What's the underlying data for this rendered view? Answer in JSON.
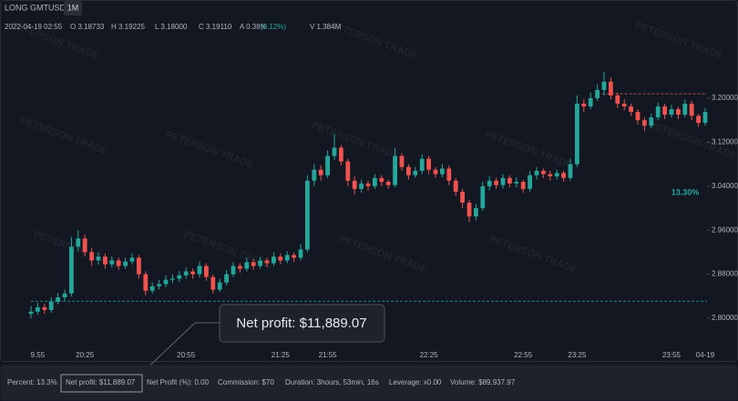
{
  "header": {
    "symbol": "LONG GMTUSDT",
    "interval": "1M",
    "date": "2022-04-19 02:55",
    "open": "O 3.18733",
    "high": "H 3.19225",
    "low": "L 3.18000",
    "close": "C 3.19110",
    "amplitude": "A 0.38%",
    "change": "(0.12%)",
    "volume": "V 1.384M"
  },
  "watermark": "PETERSON TRADE",
  "tooltip": "Net profit: $11,889.07",
  "footer": [
    "Percent: 13.3%",
    "Net profit: $11,889.07",
    "Net Profit (%): 0.00",
    "Commission: $70",
    "Duration: 3hours, 53min, 16s",
    "Leverage: x0.00",
    "Volume: $89,937.97"
  ],
  "chart_data": {
    "type": "candlestick",
    "up_color": "#26a69a",
    "down_color": "#ef5350",
    "categories": [
      null,
      "9.55",
      null,
      null,
      null,
      null,
      null,
      null,
      "20:25",
      null,
      null,
      null,
      null,
      null,
      null,
      null,
      null,
      null,
      null,
      null,
      null,
      null,
      null,
      "20:55",
      null,
      null,
      null,
      null,
      null,
      null,
      null,
      null,
      null,
      null,
      null,
      null,
      null,
      "21:25",
      null,
      null,
      null,
      null,
      null,
      null,
      "21:55",
      null,
      null,
      null,
      null,
      null,
      null,
      null,
      null,
      null,
      null,
      null,
      null,
      null,
      null,
      "22:25",
      null,
      null,
      null,
      null,
      null,
      null,
      null,
      null,
      null,
      null,
      null,
      null,
      null,
      "22:55",
      null,
      null,
      null,
      null,
      null,
      null,
      null,
      "23:25",
      null,
      null,
      null,
      null,
      null,
      null,
      null,
      null,
      null,
      null,
      null,
      null,
      null,
      "23:55",
      null,
      null,
      null,
      null,
      "04-19"
    ],
    "open": [
      2.808,
      2.812,
      2.82,
      2.815,
      2.83,
      2.838,
      2.845,
      2.93,
      2.945,
      2.92,
      2.905,
      2.912,
      2.898,
      2.905,
      2.895,
      2.903,
      2.91,
      2.88,
      2.85,
      2.858,
      2.862,
      2.87,
      2.872,
      2.878,
      2.885,
      2.88,
      2.895,
      2.875,
      2.852,
      2.865,
      2.88,
      2.895,
      2.89,
      2.902,
      2.895,
      2.905,
      2.9,
      2.912,
      2.905,
      2.915,
      2.91,
      2.925,
      3.05,
      3.07,
      3.06,
      3.095,
      3.11,
      3.085,
      3.05,
      3.035,
      3.045,
      3.04,
      3.055,
      3.048,
      3.042,
      3.095,
      3.075,
      3.06,
      3.068,
      3.09,
      3.07,
      3.062,
      3.072,
      3.05,
      3.03,
      3.01,
      2.985,
      3.0,
      3.04,
      3.05,
      3.042,
      3.055,
      3.045,
      3.048,
      3.035,
      3.06,
      3.068,
      3.062,
      3.058,
      3.064,
      3.055,
      3.08,
      3.19,
      3.185,
      3.2,
      3.215,
      3.23,
      3.205,
      3.19,
      3.185,
      3.175,
      3.16,
      3.15,
      3.165,
      3.185,
      3.17,
      3.18,
      3.17,
      3.19,
      3.168,
      3.155
    ],
    "high": [
      2.822,
      2.828,
      2.826,
      2.838,
      2.846,
      2.852,
      2.948,
      2.96,
      2.952,
      2.928,
      2.92,
      2.918,
      2.912,
      2.91,
      2.91,
      2.918,
      2.915,
      2.885,
      2.865,
      2.87,
      2.878,
      2.88,
      2.886,
      2.892,
      2.89,
      2.903,
      2.9,
      2.88,
      2.872,
      2.888,
      2.902,
      2.9,
      2.91,
      2.908,
      2.912,
      2.91,
      2.92,
      2.918,
      2.922,
      2.92,
      2.935,
      3.06,
      3.08,
      3.078,
      3.105,
      3.135,
      3.115,
      3.09,
      3.058,
      3.052,
      3.05,
      3.062,
      3.06,
      3.052,
      3.11,
      3.1,
      3.08,
      3.075,
      3.098,
      3.095,
      3.075,
      3.08,
      3.078,
      3.055,
      3.035,
      3.015,
      3.008,
      3.048,
      3.058,
      3.056,
      3.062,
      3.06,
      3.056,
      3.052,
      3.068,
      3.075,
      3.072,
      3.068,
      3.07,
      3.068,
      3.09,
      3.205,
      3.198,
      3.21,
      3.225,
      3.248,
      3.238,
      3.21,
      3.198,
      3.19,
      3.18,
      3.165,
      3.172,
      3.192,
      3.19,
      3.188,
      3.185,
      3.198,
      3.195,
      3.172,
      3.182
    ],
    "low": [
      2.8,
      2.806,
      2.808,
      2.81,
      2.825,
      2.832,
      2.84,
      2.922,
      2.912,
      2.895,
      2.898,
      2.89,
      2.892,
      2.888,
      2.89,
      2.898,
      2.872,
      2.842,
      2.845,
      2.852,
      2.856,
      2.864,
      2.866,
      2.872,
      2.872,
      2.874,
      2.868,
      2.845,
      2.848,
      2.86,
      2.875,
      2.883,
      2.885,
      2.888,
      2.89,
      2.893,
      2.895,
      2.898,
      2.9,
      2.902,
      2.905,
      2.92,
      3.04,
      3.05,
      3.055,
      3.088,
      3.078,
      3.04,
      3.025,
      3.028,
      3.032,
      3.035,
      3.04,
      3.035,
      3.038,
      3.068,
      3.052,
      3.055,
      3.062,
      3.062,
      3.055,
      3.056,
      3.042,
      3.022,
      3.0,
      2.975,
      2.978,
      2.995,
      3.032,
      3.035,
      3.036,
      3.038,
      3.038,
      3.028,
      3.03,
      3.052,
      3.055,
      3.05,
      3.052,
      3.048,
      3.05,
      3.075,
      3.175,
      3.18,
      3.195,
      3.205,
      3.198,
      3.182,
      3.178,
      3.168,
      3.152,
      3.14,
      3.145,
      3.16,
      3.162,
      3.165,
      3.162,
      3.165,
      3.16,
      3.148,
      3.15
    ],
    "close": [
      2.812,
      2.82,
      2.815,
      2.83,
      2.838,
      2.845,
      2.93,
      2.945,
      2.92,
      2.905,
      2.912,
      2.898,
      2.905,
      2.895,
      2.903,
      2.91,
      2.88,
      2.85,
      2.858,
      2.862,
      2.87,
      2.872,
      2.878,
      2.885,
      2.88,
      2.895,
      2.875,
      2.852,
      2.865,
      2.88,
      2.895,
      2.89,
      2.902,
      2.895,
      2.905,
      2.9,
      2.912,
      2.905,
      2.915,
      2.91,
      2.925,
      3.05,
      3.07,
      3.06,
      3.095,
      3.11,
      3.085,
      3.05,
      3.035,
      3.045,
      3.04,
      3.055,
      3.048,
      3.042,
      3.095,
      3.075,
      3.06,
      3.068,
      3.09,
      3.07,
      3.062,
      3.072,
      3.05,
      3.03,
      3.01,
      2.985,
      3.0,
      3.04,
      3.05,
      3.042,
      3.055,
      3.045,
      3.048,
      3.035,
      3.06,
      3.068,
      3.062,
      3.058,
      3.064,
      3.055,
      3.08,
      3.19,
      3.185,
      3.2,
      3.215,
      3.23,
      3.205,
      3.19,
      3.185,
      3.175,
      3.16,
      3.15,
      3.165,
      3.185,
      3.17,
      3.18,
      3.17,
      3.19,
      3.168,
      3.155,
      3.175
    ],
    "ylim": [
      2.7504,
      3.3785
    ],
    "yticks": [
      {
        "value": 2.8,
        "label": "2.80000"
      },
      {
        "value": 2.88,
        "label": "2.88000"
      },
      {
        "value": 2.96,
        "label": "2.96000"
      },
      {
        "value": 3.04,
        "label": "3.04000"
      },
      {
        "value": 3.12,
        "label": "3.12000"
      },
      {
        "value": 3.2,
        "label": "3.20000"
      }
    ],
    "entry_price": 2.831,
    "entry_color": "#26a69a",
    "target_price": 3.208,
    "target_color": "#ef5350",
    "profit_label": "13.30%",
    "profit_label_price": 3.028
  }
}
